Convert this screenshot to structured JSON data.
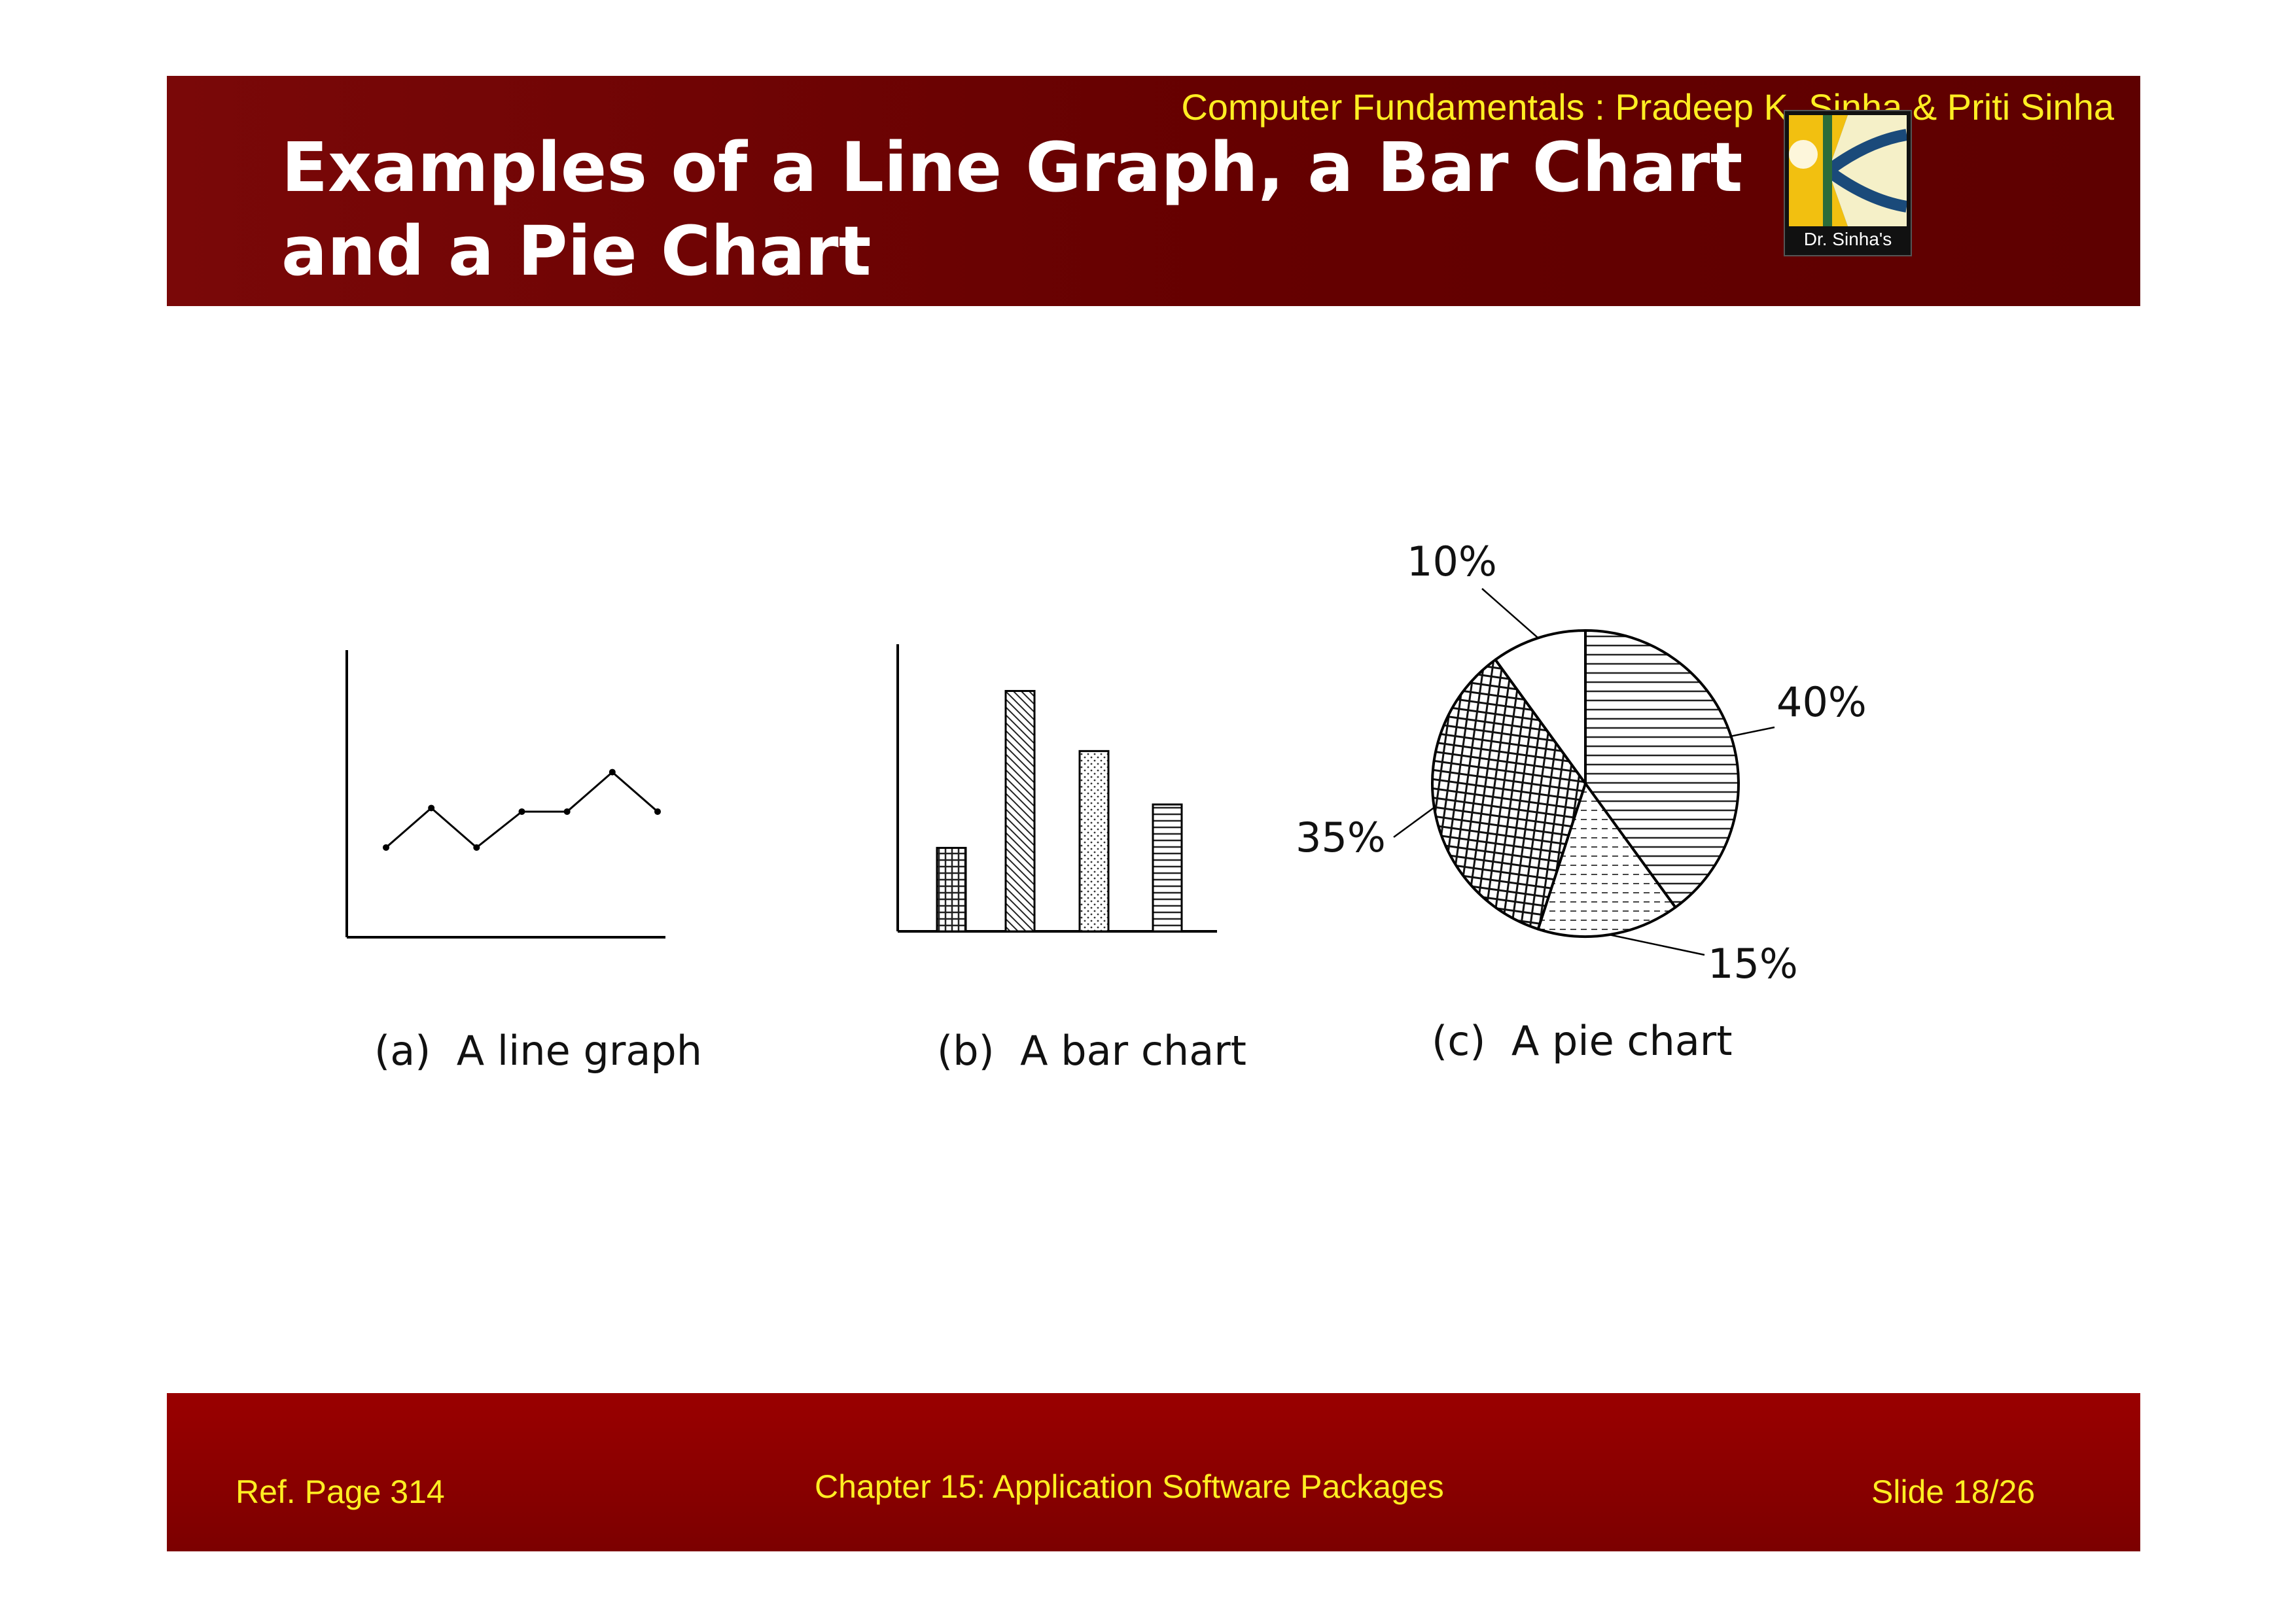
{
  "header": {
    "credit": "Computer Fundamentals : Pradeep K. Sinha & Priti Sinha",
    "title_line1": "Examples of a Line Graph, a Bar Chart",
    "title_line2": "and a Pie Chart",
    "logo_text": "Dr. Sinha's"
  },
  "captions": {
    "line": "(a)  A line graph",
    "bar": "(b)  A bar chart",
    "pie": "(c)  A pie chart"
  },
  "footer": {
    "ref": "Ref. Page  314",
    "chapter": "Chapter 15: Application Software Packages",
    "slide": "Slide 18/26"
  },
  "colors": {
    "header_bg": "#650000",
    "footer_bg": "#8b0000",
    "accent_yellow": "#ffee22",
    "title_text": "#ffffff"
  },
  "chart_data": [
    {
      "type": "line",
      "title": "",
      "x": [
        1,
        2,
        3,
        4,
        5,
        6,
        7
      ],
      "values": [
        2.5,
        3.6,
        2.5,
        3.5,
        3.5,
        4.6,
        3.5
      ],
      "ylim": [
        0,
        8
      ],
      "grid": false
    },
    {
      "type": "bar",
      "title": "",
      "categories": [
        "1",
        "2",
        "3",
        "4"
      ],
      "values": [
        2.5,
        7.2,
        5.4,
        3.8
      ],
      "ylim": [
        0,
        8.6
      ],
      "patterns": [
        "crosshatch",
        "diagonal",
        "dots",
        "horizontal"
      ],
      "grid": false
    },
    {
      "type": "pie",
      "title": "",
      "slices": [
        {
          "label": "40%",
          "value": 40,
          "pattern": "horizontal-lines"
        },
        {
          "label": "15%",
          "value": 15,
          "pattern": "dashed-lines"
        },
        {
          "label": "35%",
          "value": 35,
          "pattern": "crosshatch"
        },
        {
          "label": "10%",
          "value": 10,
          "pattern": "blank"
        }
      ]
    }
  ]
}
